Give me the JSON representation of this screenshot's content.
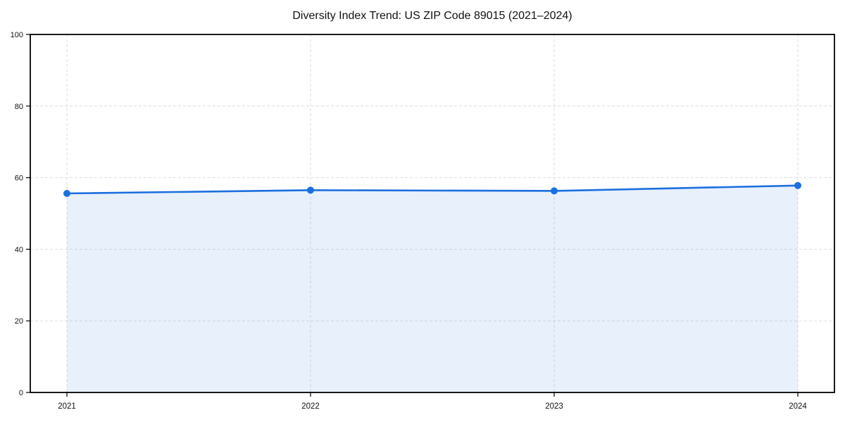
{
  "chart_data": {
    "type": "line",
    "title": "Diversity Index Trend: US ZIP Code 89015 (2021–2024)",
    "x": [
      2021,
      2022,
      2023,
      2024
    ],
    "xtick_labels": [
      "2021",
      "2022",
      "2023",
      "2024"
    ],
    "series": [
      {
        "name": "Diversity Index",
        "values": [
          55.6,
          56.5,
          56.3,
          57.8
        ]
      }
    ],
    "xlabel": "",
    "ylabel": "",
    "ylim": [
      0,
      100
    ],
    "yticks": [
      0,
      20,
      40,
      60,
      80,
      100
    ],
    "grid": true,
    "grid_style": "dashed",
    "legend_position": "none",
    "area_fill": true,
    "colors": {
      "line": "#1b6fdf",
      "marker": "#1b6fdf",
      "area_fill_opacity": 0.1,
      "grid": "#dedede",
      "spine": "#000000",
      "tick_label": "#111111",
      "background": "#ffffff"
    }
  }
}
